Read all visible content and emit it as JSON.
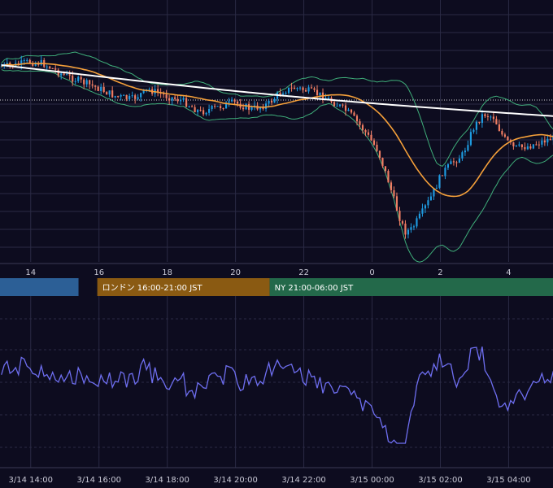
{
  "chart_data": [
    {
      "type": "candlestick",
      "series": [
        {
          "name": "",
          "role": "price"
        },
        {
          "name": "",
          "role": "moving-average-fast",
          "color": "#f5a03a"
        },
        {
          "name": "",
          "role": "moving-average-slow",
          "color": "#ffffff"
        },
        {
          "name": "",
          "role": "bollinger-bands",
          "color": "#3fae7a"
        }
      ],
      "colors": {
        "up": "#1e9be0",
        "down": "#f07d63",
        "grid": "#2a2a44",
        "background": "#0d0c1f",
        "current_price_line": "#d9d9d9"
      },
      "x_tick_labels": [
        "14",
        "16",
        "18",
        "20",
        "22",
        "0",
        "2",
        "4"
      ],
      "x_range_hours": [
        13.1,
        29.3
      ],
      "grid": true,
      "current_price_line": "dotted"
    },
    {
      "type": "line",
      "series": [
        {
          "name": "",
          "color": "#6e6ef0"
        }
      ],
      "x_range_hours": [
        13.1,
        29.3
      ],
      "grid": "dashed horizontal"
    }
  ],
  "sessions": [
    {
      "label": "",
      "color": "#2c5f96",
      "start_hour": 13.1,
      "end_hour": 15.4
    },
    {
      "label": "ロンドン 16:00-21:00 JST",
      "color": "#8a5a12",
      "start_hour": 15.95,
      "end_hour": 21.0
    },
    {
      "label": "NY 21:00-06:00 JST",
      "color": "#23694a",
      "start_hour": 21.0,
      "end_hour": 29.3
    }
  ],
  "bottom_axis_labels": [
    "3/14 14:00",
    "3/14 16:00",
    "3/14 18:00",
    "3/14 20:00",
    "3/14 22:00",
    "3/15 00:00",
    "3/15 02:00",
    "3/15 04:00"
  ]
}
